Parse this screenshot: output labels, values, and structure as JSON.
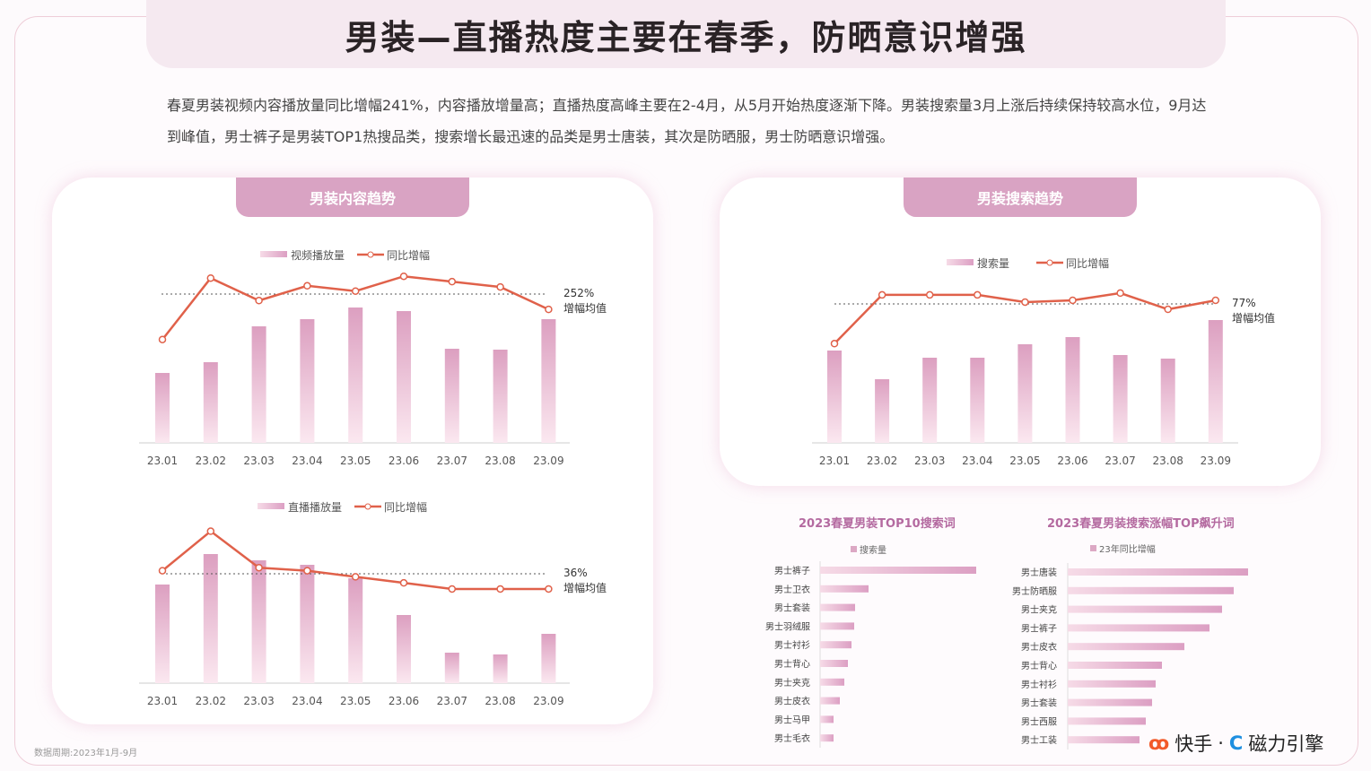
{
  "title": "男装—直播热度主要在春季，防晒意识增强",
  "description": "春夏男装视频内容播放量同比增幅241%，内容播放增量高；直播热度高峰主要在2-4月，从5月开始热度逐渐下降。男装搜索量3月上涨后持续保持较高水位，9月达到峰值，男士裤子是男装TOP1热搜品类，搜索增长最迅速的品类是男士唐装，其次是防晒服，男士防晒意识增强。",
  "panels": {
    "content": "男装内容趋势",
    "search": "男装搜索趋势"
  },
  "footnote": "数据周期:2023年1月-9月",
  "logos": {
    "kuaishou": "快手",
    "separator": "·",
    "cili": "磁力引擎"
  },
  "colors": {
    "bar": "#e3a9c6",
    "line": "#e0614a",
    "tab": "#d9a3c3",
    "title_sub": "#b46aa0"
  },
  "chart_data": [
    {
      "type": "bar+line",
      "categories": [
        "23.01",
        "23.02",
        "23.03",
        "23.04",
        "23.05",
        "23.06",
        "23.07",
        "23.08",
        "23.09"
      ],
      "series": [
        {
          "name": "视频播放量",
          "type": "bar",
          "values": [
            78,
            90,
            130,
            138,
            151,
            147,
            105,
            104,
            138
          ]
        },
        {
          "name": "同比增幅",
          "type": "line",
          "values": [
            175,
            279,
            241,
            266,
            257,
            282,
            273,
            264,
            226
          ]
        }
      ],
      "reference": {
        "value": 252,
        "label": "252%",
        "caption": "增幅均值"
      },
      "legend": "top"
    },
    {
      "type": "bar+line",
      "categories": [
        "23.01",
        "23.02",
        "23.03",
        "23.04",
        "23.05",
        "23.06",
        "23.07",
        "23.08",
        "23.09"
      ],
      "series": [
        {
          "name": "直播播放量",
          "type": "bar",
          "values": [
            110,
            144,
            137,
            132,
            117,
            76,
            34,
            32,
            55
          ]
        },
        {
          "name": "同比增幅",
          "type": "line",
          "values": [
            37,
            50,
            38,
            37,
            35,
            33,
            31,
            31,
            31
          ]
        }
      ],
      "reference": {
        "value": 36,
        "label": "36%",
        "caption": "增幅均值"
      },
      "legend": "top"
    },
    {
      "type": "bar+line",
      "categories": [
        "23.01",
        "23.02",
        "23.03",
        "23.04",
        "23.05",
        "23.06",
        "23.07",
        "23.08",
        "23.09"
      ],
      "series": [
        {
          "name": "搜索量",
          "type": "bar",
          "values": [
            103,
            71,
            95,
            95,
            110,
            118,
            98,
            94,
            137
          ]
        },
        {
          "name": "同比增幅",
          "type": "line",
          "values": [
            55,
            82,
            82,
            82,
            78,
            79,
            83,
            74,
            79
          ]
        }
      ],
      "reference": {
        "value": 77,
        "label": "77%",
        "caption": "增幅均值"
      },
      "legend": "top"
    },
    {
      "type": "bar",
      "orientation": "horizontal",
      "title": "2023春夏男装TOP10搜索词",
      "legend": "搜索量",
      "categories": [
        "男士裤子",
        "男士卫衣",
        "男士套装",
        "男士羽绒服",
        "男士衬衫",
        "男士背心",
        "男士夹克",
        "男士皮衣",
        "男士马甲",
        "男士毛衣"
      ],
      "values": [
        174,
        54,
        39,
        38,
        35,
        31,
        27,
        22,
        15,
        15
      ]
    },
    {
      "type": "bar",
      "orientation": "horizontal",
      "title": "2023春夏男装搜索涨幅TOP飙升词",
      "legend": "23年同比增幅",
      "categories": [
        "男士唐装",
        "男士防晒服",
        "男士夹克",
        "男士裤子",
        "男士皮衣",
        "男士背心",
        "男士衬衫",
        "男士套装",
        "男士西服",
        "男士工装"
      ],
      "values": [
        201,
        185,
        172,
        158,
        130,
        105,
        98,
        94,
        87,
        80
      ]
    }
  ]
}
